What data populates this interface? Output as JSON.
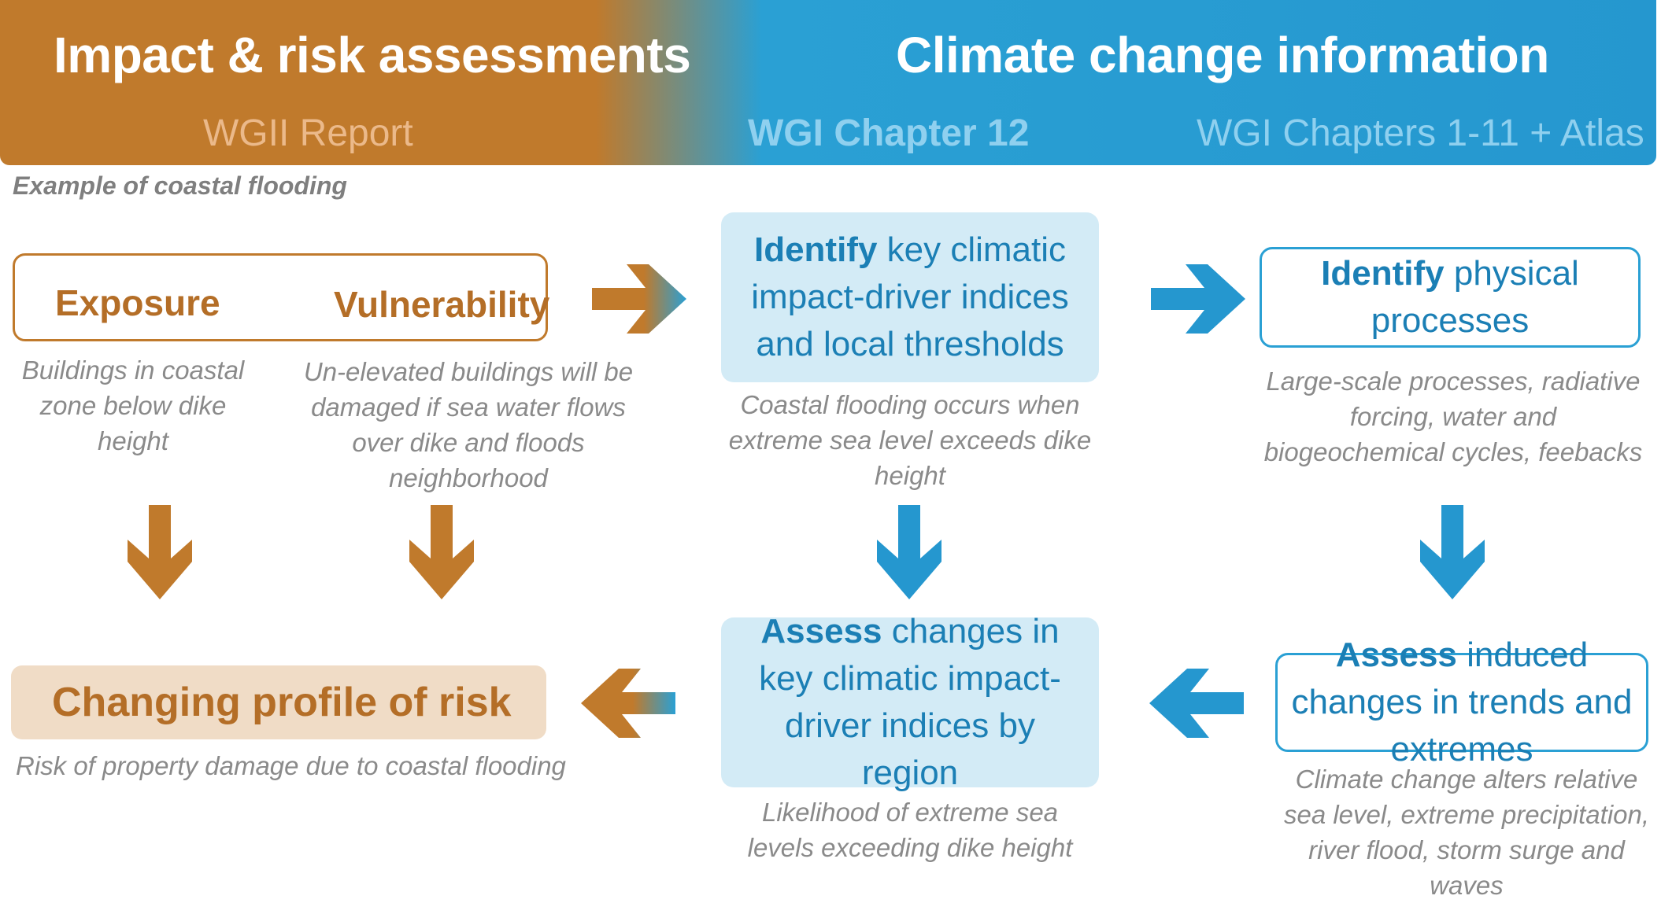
{
  "header": {
    "left_title": "Impact & risk assessments",
    "left_subtitle": "WGII Report",
    "right_title": "Climate change information",
    "mid_subtitle": "WGI Chapter 12",
    "right_subtitle": "WGI Chapters 1-11 + Atlas"
  },
  "example_note": "Example of coastal flooding",
  "exposure_box": {
    "exposure_label": "Exposure",
    "vulnerability_label": "Vulnerability"
  },
  "captions": {
    "exposure": "Buildings in coastal zone below dike height",
    "vulnerability": "Un-elevated buildings will be damaged if sea water flows over dike and floods neighborhood",
    "identify_indices": "Coastal flooding occurs when extreme sea level exceeds dike height",
    "identify_processes": "Large-scale processes, radiative forcing, water and biogeochemical cycles, feebacks",
    "risk": "Risk of property damage due to coastal flooding",
    "assess_indices": "Likelihood of extreme sea levels exceeding dike height",
    "assess_trends": "Climate change alters relative sea level, extreme precipitation, river flood, storm surge and waves"
  },
  "boxes": {
    "identify_indices": {
      "verb": "Identify",
      "rest": " key climatic impact-driver indices and local thresholds"
    },
    "identify_processes": {
      "verb": "Identify",
      "rest": " physical processes"
    },
    "risk_profile": "Changing profile of risk",
    "assess_indices": {
      "verb": "Assess",
      "rest": " changes in key climatic impact-driver indices by region"
    },
    "assess_trends": {
      "verb": "Assess",
      "rest": " induced changes in trends and extremes"
    }
  },
  "colors": {
    "orange": "#c07a2c",
    "blue": "#2597cf",
    "light_blue_fill": "#d3ebf6",
    "peach_fill": "#f0dcc6",
    "caption_gray": "#8a8a8a"
  },
  "icons": [
    "arrow-right-icon",
    "arrow-down-icon",
    "arrow-left-icon"
  ]
}
